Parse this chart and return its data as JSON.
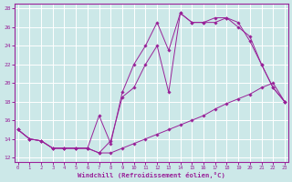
{
  "xlabel": "Windchill (Refroidissement éolien,°C)",
  "background_color": "#cce8e8",
  "grid_color": "#b0d8d8",
  "line_color": "#992299",
  "xlim": [
    -0.3,
    23.3
  ],
  "ylim": [
    11.5,
    28.5
  ],
  "yticks": [
    12,
    14,
    16,
    18,
    20,
    22,
    24,
    26,
    28
  ],
  "xticks": [
    0,
    1,
    2,
    3,
    4,
    5,
    6,
    7,
    8,
    9,
    10,
    11,
    12,
    13,
    14,
    15,
    16,
    17,
    18,
    19,
    20,
    21,
    22,
    23
  ],
  "line1_x": [
    0,
    1,
    2,
    3,
    4,
    5,
    6,
    7,
    8,
    9,
    10,
    11,
    12,
    13,
    14,
    15,
    16,
    17,
    18,
    19,
    20,
    21,
    22,
    23
  ],
  "line1_y": [
    15.0,
    14.0,
    13.8,
    13.0,
    13.0,
    13.0,
    13.0,
    12.5,
    12.5,
    13.0,
    13.5,
    14.0,
    14.5,
    15.0,
    15.5,
    16.0,
    16.5,
    17.2,
    17.8,
    18.3,
    18.8,
    19.5,
    20.0,
    18.0
  ],
  "line2_x": [
    0,
    1,
    2,
    3,
    4,
    5,
    6,
    7,
    8,
    9,
    10,
    11,
    12,
    13,
    14,
    15,
    16,
    17,
    18,
    19,
    20,
    21,
    22,
    23
  ],
  "line2_y": [
    15.0,
    14.0,
    13.8,
    13.0,
    13.0,
    13.0,
    13.0,
    16.5,
    13.5,
    19.0,
    22.0,
    24.0,
    26.5,
    23.5,
    27.5,
    26.5,
    26.5,
    26.5,
    27.0,
    26.0,
    25.0,
    22.0,
    19.5,
    18.0
  ],
  "line3_x": [
    0,
    1,
    2,
    3,
    4,
    5,
    6,
    7,
    8,
    9,
    10,
    11,
    12,
    13,
    14,
    15,
    16,
    17,
    18,
    19,
    20,
    21,
    22,
    23
  ],
  "line3_y": [
    15.0,
    14.0,
    13.8,
    13.0,
    13.0,
    13.0,
    13.0,
    12.5,
    13.8,
    18.5,
    19.5,
    22.0,
    24.0,
    19.0,
    27.5,
    26.5,
    26.5,
    27.0,
    27.0,
    26.5,
    24.5,
    22.0,
    19.5,
    18.0
  ]
}
